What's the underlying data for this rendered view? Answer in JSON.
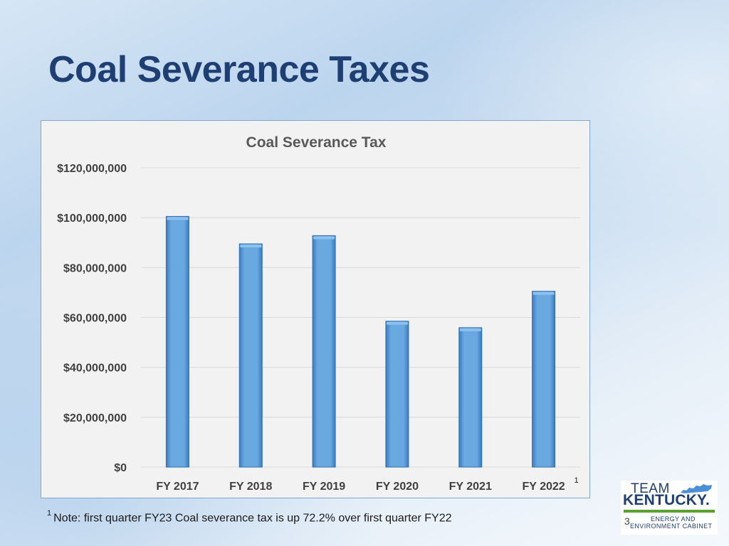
{
  "slide": {
    "title": "Coal Severance Taxes",
    "footnote_marker": "1",
    "footnote_text": "Note: first quarter FY23 Coal severance tax is up 72.2% over first quarter FY22",
    "page_number": "3"
  },
  "logo": {
    "line_team": "TEAM",
    "line_state": "KENTUCKY.",
    "line_dept1": "ENERGY AND",
    "line_dept2": "ENVIRONMENT CABINET"
  },
  "colors": {
    "bar_fill": "#5b9bd5",
    "bar_edge": "#2e6fb0",
    "title": "#1f3f73",
    "plot_bg": "#f2f2f2",
    "grid": "#d9d9d9"
  },
  "chart_data": {
    "type": "bar",
    "title": "Coal Severance Tax",
    "categories": [
      "FY 2017",
      "FY 2018",
      "FY 2019",
      "FY 2020",
      "FY 2021",
      "FY 2022"
    ],
    "values": [
      100500000,
      89500000,
      92800000,
      58500000,
      55900000,
      70500000
    ],
    "category_footnote": {
      "index": 5,
      "marker": "1"
    },
    "ylim": [
      0,
      120000000
    ],
    "yticks": [
      0,
      20000000,
      40000000,
      60000000,
      80000000,
      100000000,
      120000000
    ],
    "ytick_labels": [
      "$0",
      "$20,000,000",
      "$40,000,000",
      "$60,000,000",
      "$80,000,000",
      "$100,000,000",
      "$120,000,000"
    ],
    "grid": true,
    "legend": "none",
    "xlabel": "",
    "ylabel": ""
  }
}
